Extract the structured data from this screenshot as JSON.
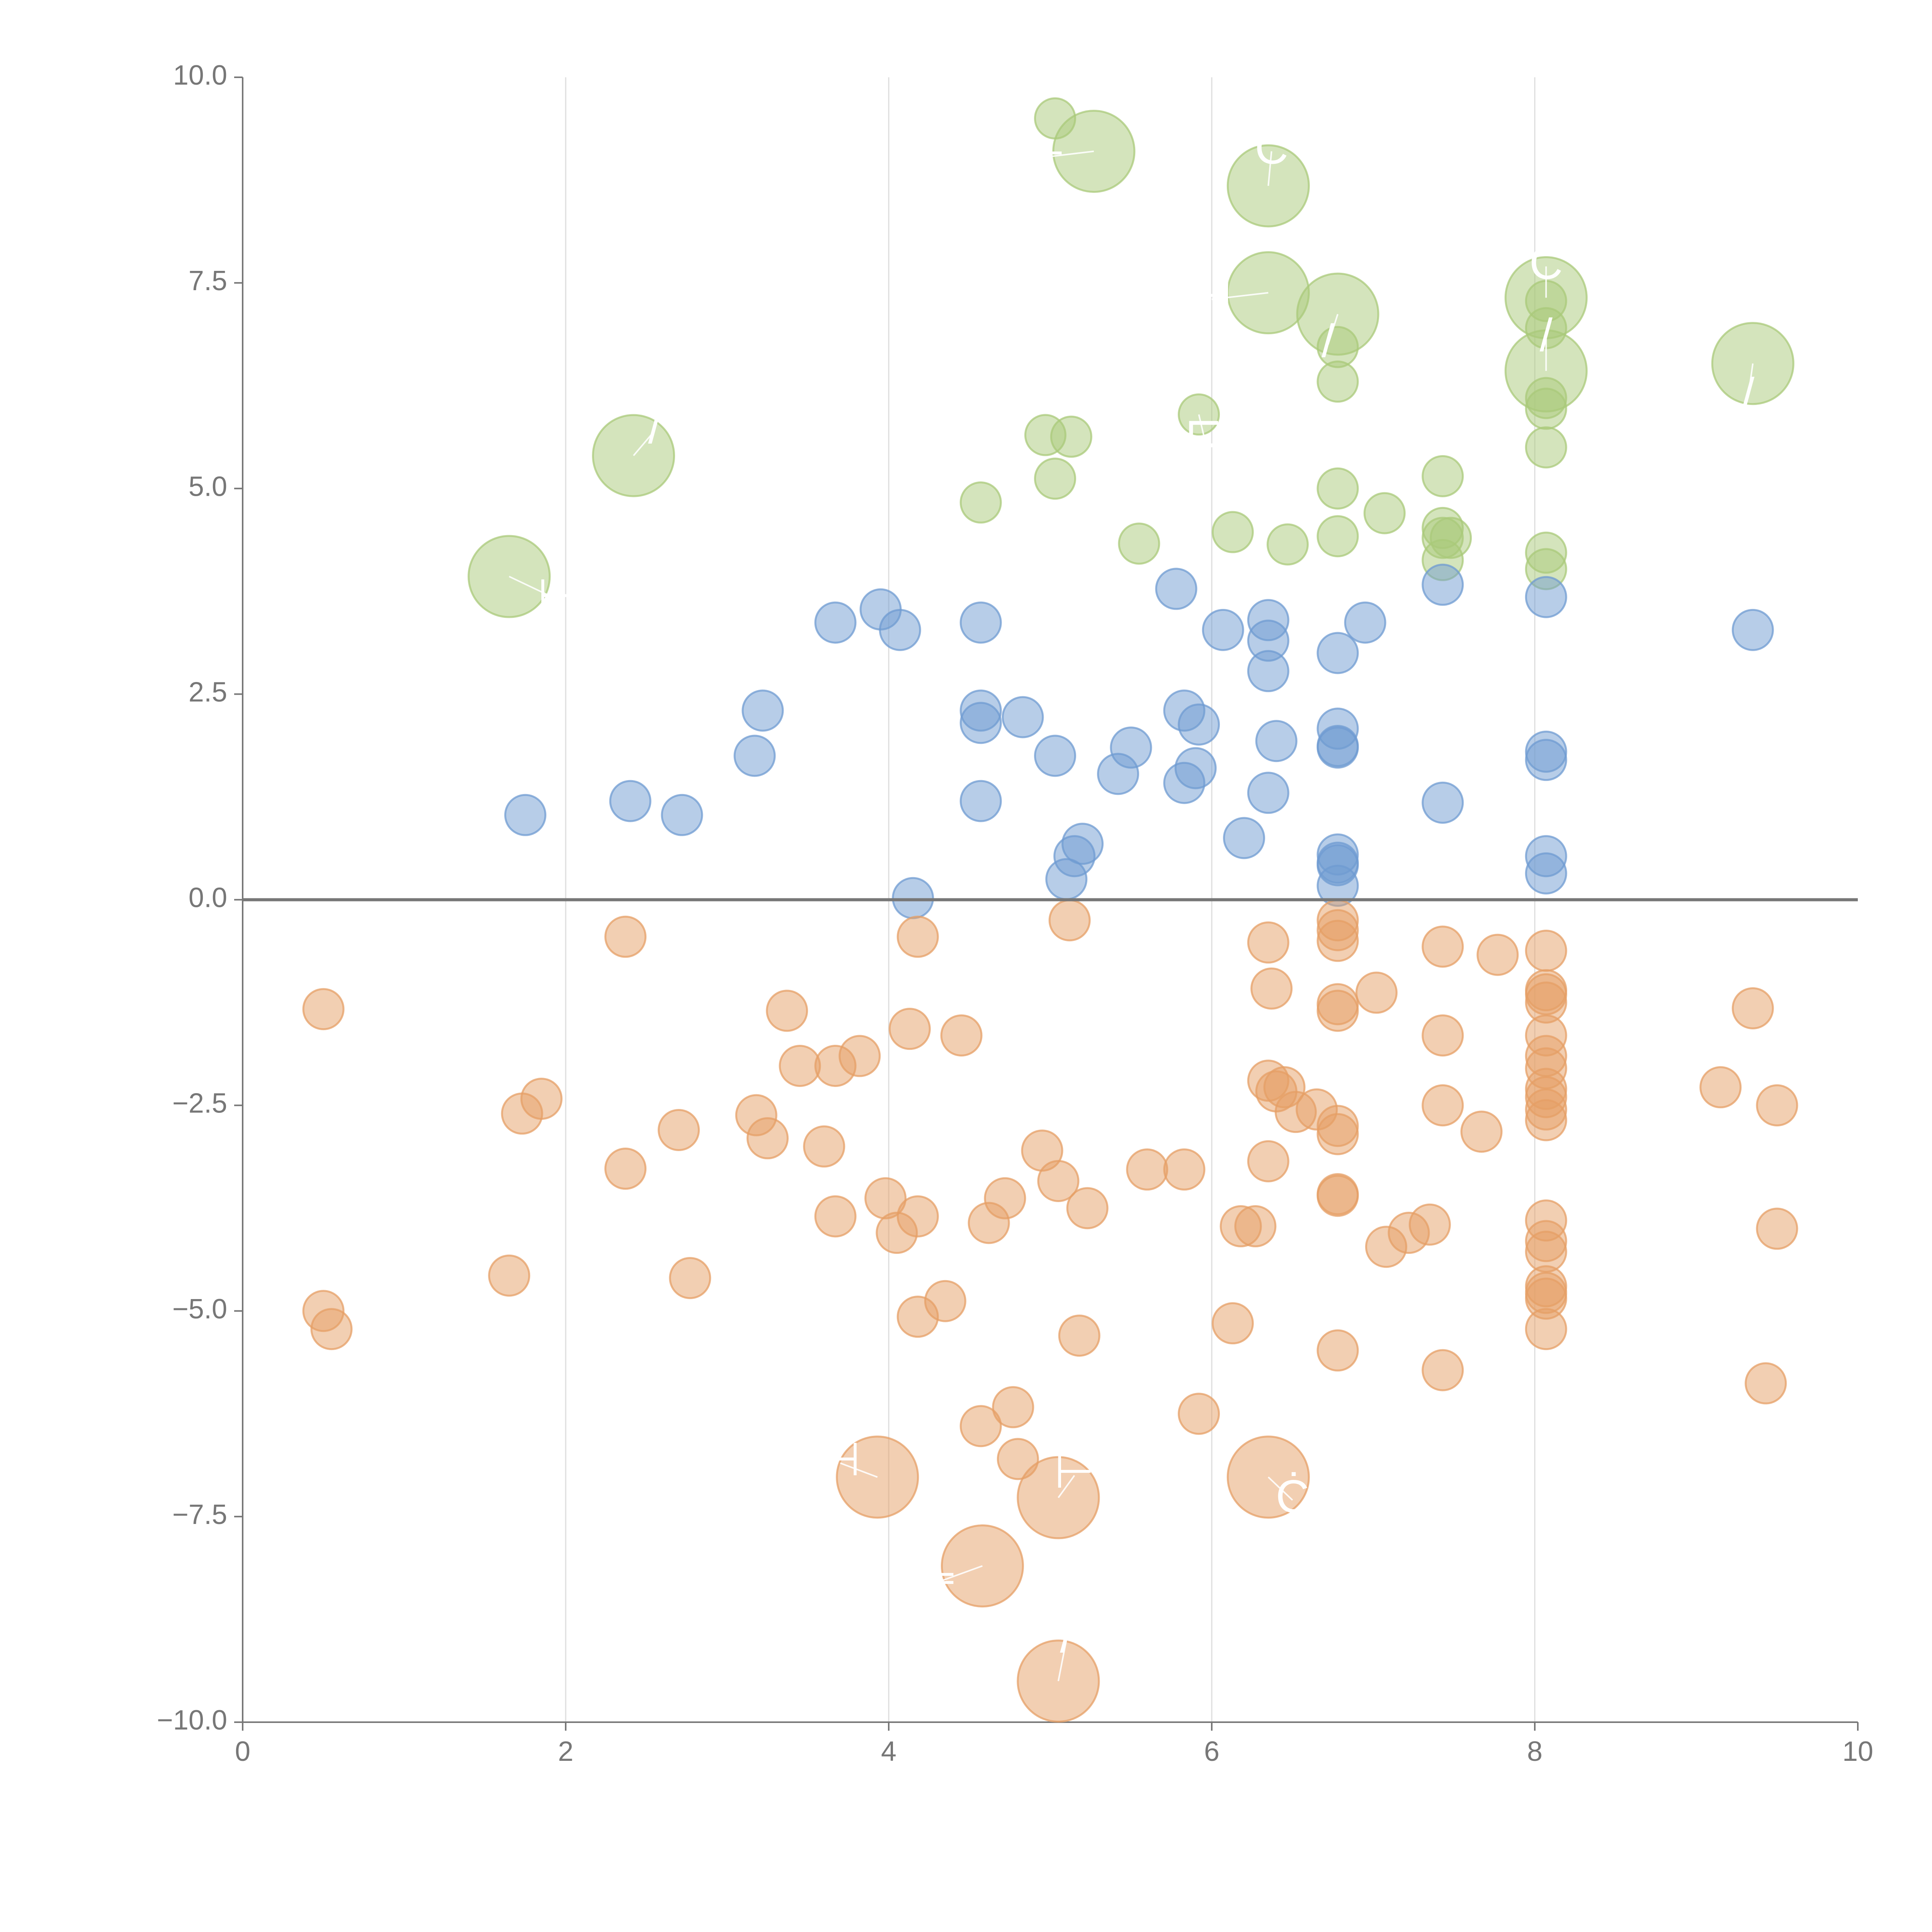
{
  "chart_data": {
    "type": "scatter",
    "title": "",
    "xlabel": "",
    "ylabel": "",
    "xlim": [
      0,
      10
    ],
    "ylim": [
      -10,
      10
    ],
    "grid": "vertical",
    "legend": "none",
    "x_ticks": [
      "0",
      "2",
      "4",
      "6",
      "8",
      "10"
    ],
    "y_ticks": [
      "−10.0",
      "−7.5",
      "−5.0",
      "−2.5",
      "0.0",
      "2.5",
      "5.0",
      "7.5",
      "10.0"
    ],
    "x_tick_values": [
      0,
      2,
      4,
      6,
      8,
      10
    ],
    "y_tick_values": [
      -10,
      -7.5,
      -5,
      -2.5,
      0,
      2.5,
      5,
      7.5,
      10
    ],
    "reference_line_y": 0,
    "colors": {
      "green": "#a9c97a",
      "blue": "#6f9bd1",
      "orange": "#e69f66",
      "axis": "#777777",
      "grid": "#dddddd"
    },
    "series": [
      {
        "name": "green",
        "color": "#a9c97a",
        "points": [
          [
            5.03,
            9.5,
            1
          ],
          [
            5.27,
            9.1,
            2
          ],
          [
            6.35,
            8.68,
            2
          ],
          [
            6.35,
            7.38,
            2
          ],
          [
            6.78,
            7.12,
            2
          ],
          [
            8.07,
            7.32,
            2
          ],
          [
            8.07,
            7.28,
            1
          ],
          [
            8.07,
            6.95,
            1
          ],
          [
            6.78,
            6.72,
            1
          ],
          [
            8.07,
            6.43,
            2
          ],
          [
            9.35,
            6.52,
            2
          ],
          [
            6.78,
            6.3,
            1
          ],
          [
            8.07,
            6.1,
            1
          ],
          [
            8.07,
            5.97,
            1
          ],
          [
            5.92,
            5.9,
            1
          ],
          [
            2.42,
            5.4,
            2
          ],
          [
            4.97,
            5.65,
            1
          ],
          [
            5.13,
            5.63,
            1
          ],
          [
            8.07,
            5.5,
            1
          ],
          [
            7.43,
            5.15,
            1
          ],
          [
            5.03,
            5.12,
            1
          ],
          [
            6.78,
            5.0,
            1
          ],
          [
            4.57,
            4.83,
            1
          ],
          [
            7.07,
            4.7,
            1
          ],
          [
            7.43,
            4.52,
            1
          ],
          [
            6.13,
            4.47,
            1
          ],
          [
            7.48,
            4.4,
            1
          ],
          [
            6.78,
            4.42,
            1
          ],
          [
            5.55,
            4.33,
            1
          ],
          [
            6.47,
            4.32,
            1
          ],
          [
            7.43,
            4.4,
            1
          ],
          [
            8.07,
            4.22,
            1
          ],
          [
            7.43,
            4.13,
            1
          ],
          [
            8.07,
            4.02,
            1
          ],
          [
            1.65,
            3.93,
            2
          ]
        ]
      },
      {
        "name": "blue",
        "color": "#6f9bd1",
        "points": [
          [
            5.78,
            3.78,
            1
          ],
          [
            7.43,
            3.83,
            1
          ],
          [
            8.07,
            3.68,
            1
          ],
          [
            3.95,
            3.53,
            1
          ],
          [
            6.35,
            3.4,
            1
          ],
          [
            3.67,
            3.37,
            1
          ],
          [
            4.57,
            3.37,
            1
          ],
          [
            6.95,
            3.37,
            1
          ],
          [
            4.07,
            3.28,
            1
          ],
          [
            6.07,
            3.28,
            1
          ],
          [
            9.35,
            3.28,
            1
          ],
          [
            6.35,
            3.15,
            1
          ],
          [
            6.78,
            3.0,
            1
          ],
          [
            6.35,
            2.78,
            1
          ],
          [
            3.22,
            2.3,
            1
          ],
          [
            4.57,
            2.3,
            1
          ],
          [
            5.83,
            2.3,
            1
          ],
          [
            4.83,
            2.22,
            1
          ],
          [
            4.57,
            2.15,
            1
          ],
          [
            5.92,
            2.13,
            1
          ],
          [
            6.78,
            2.08,
            1
          ],
          [
            6.4,
            1.93,
            1
          ],
          [
            6.78,
            1.87,
            1
          ],
          [
            6.78,
            1.85,
            1
          ],
          [
            5.5,
            1.85,
            1
          ],
          [
            8.07,
            1.8,
            1
          ],
          [
            3.17,
            1.75,
            1
          ],
          [
            5.03,
            1.75,
            1
          ],
          [
            8.07,
            1.7,
            1
          ],
          [
            5.9,
            1.6,
            1
          ],
          [
            5.42,
            1.53,
            1
          ],
          [
            5.83,
            1.42,
            1
          ],
          [
            6.35,
            1.3,
            1
          ],
          [
            2.4,
            1.2,
            1
          ],
          [
            4.57,
            1.2,
            1
          ],
          [
            7.43,
            1.18,
            1
          ],
          [
            1.75,
            1.03,
            1
          ],
          [
            2.72,
            1.03,
            1
          ],
          [
            6.2,
            0.75,
            1
          ],
          [
            5.2,
            0.68,
            1
          ],
          [
            6.78,
            0.55,
            1
          ],
          [
            8.07,
            0.53,
            1
          ],
          [
            5.15,
            0.53,
            1
          ],
          [
            6.78,
            0.45,
            1
          ],
          [
            6.78,
            0.42,
            1
          ],
          [
            8.07,
            0.32,
            1
          ],
          [
            5.1,
            0.25,
            1
          ],
          [
            6.78,
            0.17,
            1
          ],
          [
            4.15,
            0.02,
            1
          ]
        ]
      },
      {
        "name": "orange",
        "color": "#e69f66",
        "points": [
          [
            5.12,
            -0.25,
            1
          ],
          [
            6.78,
            -0.25,
            1
          ],
          [
            6.78,
            -0.37,
            1
          ],
          [
            2.37,
            -0.45,
            1
          ],
          [
            4.18,
            -0.45,
            1
          ],
          [
            6.78,
            -0.5,
            1
          ],
          [
            6.35,
            -0.52,
            1
          ],
          [
            7.43,
            -0.57,
            1
          ],
          [
            8.07,
            -0.62,
            1
          ],
          [
            7.77,
            -0.67,
            1
          ],
          [
            6.37,
            -1.08,
            1
          ],
          [
            7.02,
            -1.13,
            1
          ],
          [
            8.07,
            -1.1,
            1
          ],
          [
            8.07,
            -1.15,
            1
          ],
          [
            8.07,
            -1.25,
            1
          ],
          [
            6.78,
            -1.27,
            1
          ],
          [
            6.78,
            -1.35,
            1
          ],
          [
            0.5,
            -1.33,
            1
          ],
          [
            3.37,
            -1.35,
            1
          ],
          [
            9.35,
            -1.32,
            1
          ],
          [
            4.13,
            -1.57,
            1
          ],
          [
            4.45,
            -1.65,
            1
          ],
          [
            7.43,
            -1.65,
            1
          ],
          [
            8.07,
            -1.65,
            1
          ],
          [
            3.82,
            -1.9,
            1
          ],
          [
            8.07,
            -1.9,
            1
          ],
          [
            3.45,
            -2.02,
            1
          ],
          [
            3.67,
            -2.02,
            1
          ],
          [
            8.07,
            -2.05,
            1
          ],
          [
            6.35,
            -2.2,
            1
          ],
          [
            6.45,
            -2.28,
            1
          ],
          [
            8.07,
            -2.3,
            1
          ],
          [
            6.4,
            -2.33,
            1
          ],
          [
            9.15,
            -2.28,
            1
          ],
          [
            8.07,
            -2.4,
            1
          ],
          [
            1.85,
            -2.42,
            1
          ],
          [
            7.43,
            -2.5,
            1
          ],
          [
            9.5,
            -2.5,
            1
          ],
          [
            6.65,
            -2.55,
            1
          ],
          [
            6.52,
            -2.58,
            1
          ],
          [
            8.07,
            -2.55,
            1
          ],
          [
            1.73,
            -2.6,
            1
          ],
          [
            3.18,
            -2.62,
            1
          ],
          [
            8.07,
            -2.68,
            1
          ],
          [
            6.78,
            -2.75,
            1
          ],
          [
            2.7,
            -2.8,
            1
          ],
          [
            7.67,
            -2.82,
            1
          ],
          [
            6.78,
            -2.85,
            1
          ],
          [
            3.25,
            -2.9,
            1
          ],
          [
            3.6,
            -3.0,
            1
          ],
          [
            4.95,
            -3.05,
            1
          ],
          [
            6.35,
            -3.18,
            1
          ],
          [
            2.37,
            -3.27,
            1
          ],
          [
            5.6,
            -3.28,
            1
          ],
          [
            5.83,
            -3.28,
            1
          ],
          [
            5.05,
            -3.42,
            1
          ],
          [
            6.78,
            -3.58,
            1
          ],
          [
            6.78,
            -3.6,
            1
          ],
          [
            3.98,
            -3.63,
            1
          ],
          [
            4.72,
            -3.63,
            1
          ],
          [
            5.23,
            -3.75,
            1
          ],
          [
            3.67,
            -3.85,
            1
          ],
          [
            4.18,
            -3.85,
            1
          ],
          [
            8.07,
            -3.9,
            1
          ],
          [
            4.62,
            -3.93,
            1
          ],
          [
            7.35,
            -3.95,
            1
          ],
          [
            6.18,
            -3.97,
            1
          ],
          [
            6.27,
            -3.97,
            1
          ],
          [
            9.5,
            -4.0,
            1
          ],
          [
            4.05,
            -4.05,
            1
          ],
          [
            7.22,
            -4.05,
            1
          ],
          [
            8.07,
            -4.15,
            1
          ],
          [
            7.08,
            -4.22,
            1
          ],
          [
            8.07,
            -4.28,
            1
          ],
          [
            1.65,
            -4.57,
            1
          ],
          [
            2.77,
            -4.6,
            1
          ],
          [
            8.07,
            -4.7,
            1
          ],
          [
            8.07,
            -4.78,
            1
          ],
          [
            8.07,
            -4.85,
            1
          ],
          [
            4.35,
            -4.88,
            1
          ],
          [
            0.5,
            -5.0,
            1
          ],
          [
            4.18,
            -5.07,
            1
          ],
          [
            6.13,
            -5.15,
            1
          ],
          [
            0.55,
            -5.22,
            1
          ],
          [
            8.07,
            -5.22,
            1
          ],
          [
            5.18,
            -5.3,
            1
          ],
          [
            6.78,
            -5.48,
            1
          ],
          [
            7.43,
            -5.72,
            1
          ],
          [
            9.43,
            -5.88,
            1
          ],
          [
            4.77,
            -6.17,
            1
          ],
          [
            5.92,
            -6.25,
            1
          ],
          [
            4.57,
            -6.4,
            1
          ],
          [
            4.8,
            -6.8,
            1
          ],
          [
            3.93,
            -7.02,
            2
          ],
          [
            6.35,
            -7.02,
            2
          ],
          [
            5.05,
            -7.27,
            2
          ],
          [
            4.58,
            -8.1,
            2
          ],
          [
            5.05,
            -9.5,
            2
          ]
        ]
      }
    ],
    "annotations": [
      {
        "label": "⊢",
        "anchor": [
          5.27,
          9.1
        ],
        "to": [
          4.97,
          9.03
        ]
      },
      {
        "label": "Ċ",
        "anchor": [
          6.35,
          8.68
        ],
        "to": [
          6.37,
          9.1
        ]
      },
      {
        "label": "⊣",
        "anchor": [
          6.35,
          7.38
        ],
        "to": [
          6.0,
          7.3
        ]
      },
      {
        "label": "/",
        "anchor": [
          6.78,
          7.12
        ],
        "to": [
          6.72,
          6.75
        ]
      },
      {
        "label": "Ċ",
        "anchor": [
          8.07,
          7.32
        ],
        "to": [
          8.07,
          7.7
        ]
      },
      {
        "label": "/",
        "anchor": [
          8.07,
          6.43
        ],
        "to": [
          8.07,
          6.82
        ]
      },
      {
        "label": "/",
        "anchor": [
          9.35,
          6.52
        ],
        "to": [
          9.32,
          6.1
        ]
      },
      {
        "label": "⊏",
        "anchor": [
          5.92,
          5.9
        ],
        "to": [
          5.95,
          5.65
        ]
      },
      {
        "label": "/",
        "anchor": [
          2.42,
          5.4
        ],
        "to": [
          2.55,
          5.7
        ]
      },
      {
        "label": "⊢",
        "anchor": [
          1.65,
          3.93
        ],
        "to": [
          1.95,
          3.65
        ]
      },
      {
        "label": "⊣",
        "anchor": [
          3.93,
          -7.02
        ],
        "to": [
          3.7,
          -6.85
        ]
      },
      {
        "label": "Ċ",
        "anchor": [
          6.35,
          -7.02
        ],
        "to": [
          6.5,
          -7.3
        ]
      },
      {
        "label": "⊢",
        "anchor": [
          5.05,
          -7.27
        ],
        "to": [
          5.15,
          -7.0
        ]
      },
      {
        "label": "⊨",
        "anchor": [
          4.58,
          -8.1
        ],
        "to": [
          4.3,
          -8.3
        ]
      },
      {
        "label": "/",
        "anchor": [
          5.05,
          -9.5
        ],
        "to": [
          5.1,
          -9.0
        ]
      }
    ]
  }
}
